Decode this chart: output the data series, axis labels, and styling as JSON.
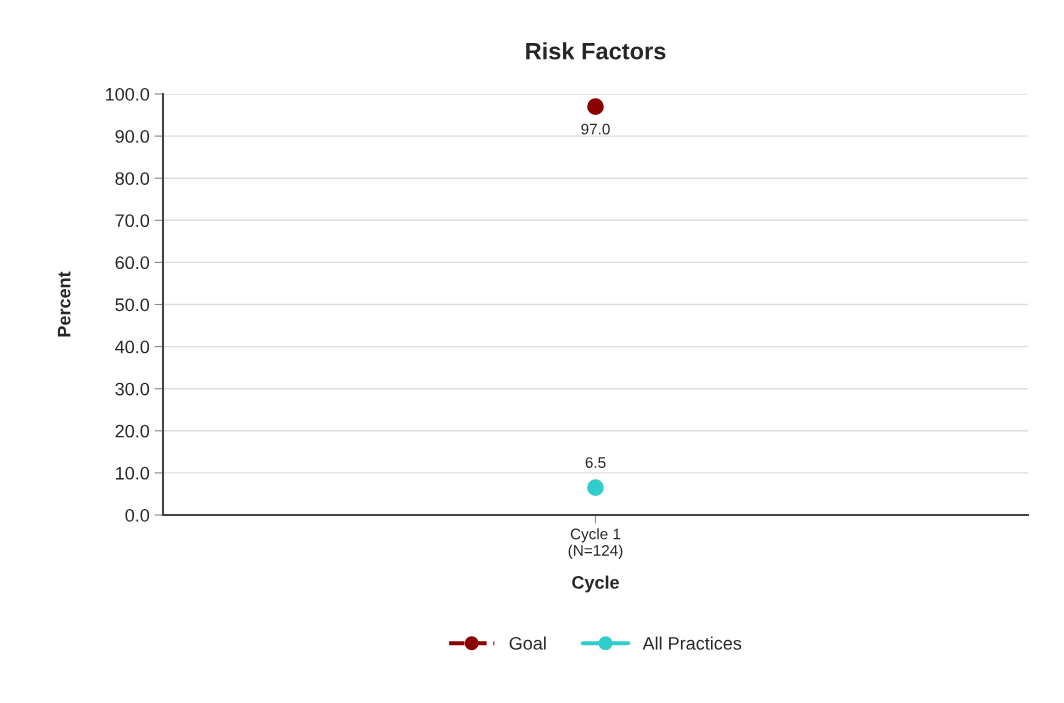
{
  "chart_data": {
    "type": "line",
    "title": "Risk Factors",
    "xlabel": "Cycle",
    "ylabel": "Percent",
    "categories": [
      "Cycle 1\n(N=124)"
    ],
    "series": [
      {
        "name": "Goal",
        "color": "#8b0000",
        "values": [
          97.0
        ],
        "value_labels": [
          "97.0"
        ],
        "line_style": "dashed"
      },
      {
        "name": "All Practices",
        "color": "#33cccc",
        "values": [
          6.5
        ],
        "value_labels": [
          "6.5"
        ],
        "line_style": "solid"
      }
    ],
    "ylim": [
      0,
      100
    ],
    "yticks": [
      {
        "value": 0,
        "label": "0.0"
      },
      {
        "value": 10,
        "label": "10.0"
      },
      {
        "value": 20,
        "label": "20.0"
      },
      {
        "value": 30,
        "label": "30.0"
      },
      {
        "value": 40,
        "label": "40.0"
      },
      {
        "value": 50,
        "label": "50.0"
      },
      {
        "value": 60,
        "label": "60.0"
      },
      {
        "value": 70,
        "label": "70.0"
      },
      {
        "value": 80,
        "label": "80.0"
      },
      {
        "value": 90,
        "label": "90.0"
      },
      {
        "value": 100,
        "label": "100.0"
      }
    ],
    "grid": "y",
    "legend": "bottom",
    "marker": "circle"
  }
}
